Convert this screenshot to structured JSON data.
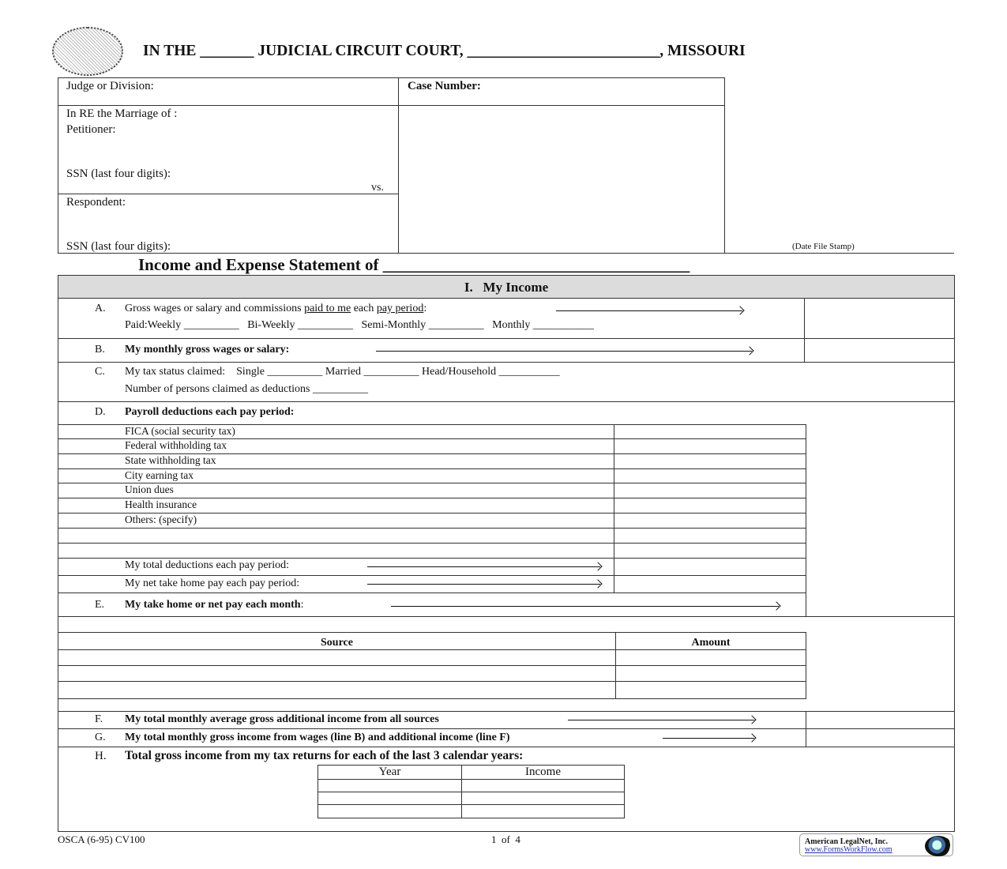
{
  "header": {
    "seal_text": "Missouri state seal",
    "title": "IN THE _______ JUDICIAL CIRCUIT COURT, _________________________, MISSOURI"
  },
  "caption": {
    "judge": "Judge or Division:",
    "case_number": "Case Number:",
    "in_re": "In RE the Marriage of :",
    "petitioner": "Petitioner:",
    "ssn1": "SSN (last four digits):",
    "vs": "vs.",
    "respondent": "Respondent:",
    "ssn2": "SSN (last four digits):",
    "date_stamp": "(Date File Stamp)"
  },
  "statement_title": "Income and Expense Statement of _____________________________________",
  "section": {
    "title": "I.   My Income"
  },
  "rowA": {
    "letter": "A.",
    "text1": "Gross wages or salary and commissions ",
    "u1": "paid to me",
    "text2": " each ",
    "u2": "pay period",
    "text3": ":",
    "paid": "Paid:Weekly __________   Bi-Weekly __________   Semi-Monthly __________   Monthly ___________"
  },
  "rowB": {
    "letter": "B.",
    "text": "My monthly gross wages or salary:"
  },
  "rowC": {
    "letter": "C.",
    "text": "My tax status claimed:    Single __________ Married __________ Head/Household ___________",
    "text2": "Number of persons claimed as deductions __________"
  },
  "rowD": {
    "letter": "D.",
    "text": "Payroll deductions each pay period:",
    "items": [
      "FICA (social security tax)",
      "Federal withholding tax",
      "State withholding tax",
      "City earning tax",
      "Union dues",
      "Health insurance",
      "Others: (specify)",
      "",
      ""
    ],
    "total": "My total deductions each pay period:",
    "net": "My net take home pay each pay period:"
  },
  "rowE": {
    "letter": "E.",
    "text": "My take home or net pay each month",
    ":": ":",
    "colon": ":"
  },
  "sources": {
    "col1": "Source",
    "col2": "Amount"
  },
  "rowF": {
    "letter": "F.",
    "text": "My total monthly average gross additional income from all sources"
  },
  "rowG": {
    "letter": "G.",
    "text": "My total monthly gross income from wages (line B) and additional income (line F)"
  },
  "rowH": {
    "letter": "H.",
    "text": "Total gross income from my tax returns for each of the last 3 calendar years:",
    "col1": "Year",
    "col2": "Income"
  },
  "footer": {
    "form_id": "OSCA (6-95) CV100",
    "page": "1  of  4",
    "vendor": "American LegalNet, Inc.",
    "vendor_url": "www.FormsWorkFlow.com"
  }
}
